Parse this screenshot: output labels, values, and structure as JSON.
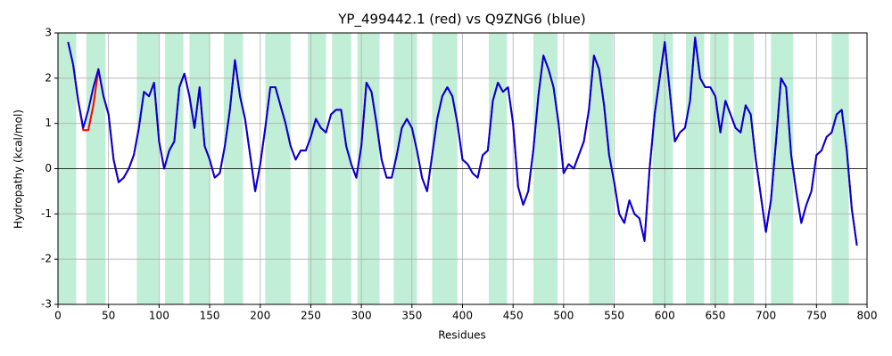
{
  "chart_data": {
    "type": "line",
    "title": "YP_499442.1 (red) vs Q9ZNG6 (blue)",
    "x_label": "Residues",
    "y_label": "Hydropathy (kcal/mol)",
    "xlim": [
      0,
      800
    ],
    "ylim": [
      -3,
      3
    ],
    "xticks": [
      0,
      50,
      100,
      150,
      200,
      250,
      300,
      350,
      400,
      450,
      500,
      550,
      600,
      650,
      700,
      750,
      800
    ],
    "yticks": [
      -3,
      -2,
      -1,
      0,
      1,
      2,
      3
    ],
    "grid": true,
    "hline": 0,
    "region_color": "#c1eed6",
    "regions": [
      [
        0,
        18
      ],
      [
        28,
        47
      ],
      [
        78,
        100
      ],
      [
        106,
        124
      ],
      [
        130,
        150
      ],
      [
        164,
        183
      ],
      [
        205,
        230
      ],
      [
        247,
        265
      ],
      [
        271,
        290
      ],
      [
        296,
        318
      ],
      [
        332,
        355
      ],
      [
        370,
        395
      ],
      [
        426,
        444
      ],
      [
        470,
        494
      ],
      [
        525,
        549
      ],
      [
        588,
        608
      ],
      [
        621,
        639
      ],
      [
        645,
        663
      ],
      [
        668,
        688
      ],
      [
        705,
        727
      ],
      [
        765,
        782
      ]
    ],
    "x": [
      10,
      15,
      20,
      25,
      30,
      35,
      40,
      45,
      50,
      55,
      60,
      65,
      70,
      75,
      80,
      85,
      90,
      95,
      100,
      105,
      110,
      115,
      120,
      125,
      130,
      135,
      140,
      145,
      150,
      155,
      160,
      165,
      170,
      175,
      180,
      185,
      190,
      195,
      200,
      205,
      210,
      215,
      220,
      225,
      230,
      235,
      240,
      245,
      250,
      255,
      260,
      265,
      270,
      275,
      280,
      285,
      290,
      295,
      300,
      305,
      310,
      315,
      320,
      325,
      330,
      335,
      340,
      345,
      350,
      355,
      360,
      365,
      370,
      375,
      380,
      385,
      390,
      395,
      400,
      405,
      410,
      415,
      420,
      425,
      430,
      435,
      440,
      445,
      450,
      455,
      460,
      465,
      470,
      475,
      480,
      485,
      490,
      495,
      500,
      505,
      510,
      515,
      520,
      525,
      530,
      535,
      540,
      545,
      550,
      555,
      560,
      565,
      570,
      575,
      580,
      585,
      590,
      595,
      600,
      605,
      610,
      615,
      620,
      625,
      630,
      635,
      640,
      645,
      650,
      655,
      660,
      665,
      670,
      675,
      680,
      685,
      690,
      695,
      700,
      705,
      710,
      715,
      720,
      725,
      730,
      735,
      740,
      745,
      750,
      755,
      760,
      765,
      770,
      775,
      780,
      785,
      790
    ],
    "series": [
      {
        "name": "YP_499442.1",
        "color": "#ff0000",
        "values": [
          2.8,
          2.3,
          1.5,
          0.85,
          0.85,
          1.4,
          2.2,
          1.6,
          1.2,
          0.2,
          -0.3,
          -0.2,
          0.0,
          0.3,
          0.9,
          1.7,
          1.6,
          1.9,
          0.6,
          0.0,
          0.4,
          0.6,
          1.8,
          2.1,
          1.6,
          0.9,
          1.8,
          0.5,
          0.2,
          -0.2,
          -0.1,
          0.5,
          1.3,
          2.4,
          1.6,
          1.1,
          0.3,
          -0.5,
          0.1,
          0.9,
          1.8,
          1.8,
          1.4,
          1.0,
          0.5,
          0.2,
          0.4,
          0.4,
          0.7,
          1.1,
          0.9,
          0.8,
          1.2,
          1.3,
          1.3,
          0.5,
          0.1,
          -0.2,
          0.5,
          1.9,
          1.7,
          1.0,
          0.2,
          -0.2,
          -0.2,
          0.3,
          0.9,
          1.1,
          0.9,
          0.4,
          -0.2,
          -0.5,
          0.3,
          1.1,
          1.6,
          1.8,
          1.6,
          1.0,
          0.2,
          0.1,
          -0.1,
          -0.2,
          0.3,
          0.4,
          1.5,
          1.9,
          1.7,
          1.8,
          1.0,
          -0.4,
          -0.8,
          -0.5,
          0.4,
          1.6,
          2.5,
          2.2,
          1.8,
          1.0,
          -0.1,
          0.1,
          0.0,
          0.3,
          0.6,
          1.3,
          2.5,
          2.2,
          1.4,
          0.3,
          -0.3,
          -1.0,
          -1.2,
          -0.7,
          -1.0,
          -1.1,
          -1.6,
          0.0,
          1.2,
          2.0,
          2.8,
          1.7,
          0.6,
          0.8,
          0.9,
          1.5,
          2.9,
          2.0,
          1.8,
          1.8,
          1.6,
          0.8,
          1.5,
          1.2,
          0.9,
          0.8,
          1.4,
          1.2,
          0.2,
          -0.6,
          -1.4,
          -0.7,
          0.6,
          2.0,
          1.8,
          0.3,
          -0.5,
          -1.2,
          -0.8,
          -0.5,
          0.3,
          0.4,
          0.7,
          0.8,
          1.2,
          1.3,
          0.4,
          -0.9,
          -1.7
        ]
      },
      {
        "name": "Q9ZNG6",
        "color": "#0000dd",
        "values": [
          2.8,
          2.3,
          1.5,
          0.9,
          1.3,
          1.8,
          2.2,
          1.6,
          1.2,
          0.2,
          -0.3,
          -0.2,
          0.0,
          0.3,
          0.9,
          1.7,
          1.6,
          1.9,
          0.6,
          0.0,
          0.4,
          0.6,
          1.8,
          2.1,
          1.6,
          0.9,
          1.8,
          0.5,
          0.2,
          -0.2,
          -0.1,
          0.5,
          1.3,
          2.4,
          1.6,
          1.1,
          0.3,
          -0.5,
          0.1,
          0.9,
          1.8,
          1.8,
          1.4,
          1.0,
          0.5,
          0.2,
          0.4,
          0.4,
          0.7,
          1.1,
          0.9,
          0.8,
          1.2,
          1.3,
          1.3,
          0.5,
          0.1,
          -0.2,
          0.5,
          1.9,
          1.7,
          1.0,
          0.2,
          -0.2,
          -0.2,
          0.3,
          0.9,
          1.1,
          0.9,
          0.4,
          -0.2,
          -0.5,
          0.3,
          1.1,
          1.6,
          1.8,
          1.6,
          1.0,
          0.2,
          0.1,
          -0.1,
          -0.2,
          0.3,
          0.4,
          1.5,
          1.9,
          1.7,
          1.8,
          1.0,
          -0.4,
          -0.8,
          -0.5,
          0.4,
          1.6,
          2.5,
          2.2,
          1.8,
          1.0,
          -0.1,
          0.1,
          0.0,
          0.3,
          0.6,
          1.3,
          2.5,
          2.2,
          1.4,
          0.3,
          -0.3,
          -1.0,
          -1.2,
          -0.7,
          -1.0,
          -1.1,
          -1.6,
          0.0,
          1.2,
          2.0,
          2.8,
          1.7,
          0.6,
          0.8,
          0.9,
          1.5,
          2.9,
          2.0,
          1.8,
          1.8,
          1.6,
          0.8,
          1.5,
          1.2,
          0.9,
          0.8,
          1.4,
          1.2,
          0.2,
          -0.6,
          -1.4,
          -0.7,
          0.6,
          2.0,
          1.8,
          0.3,
          -0.5,
          -1.2,
          -0.8,
          -0.5,
          0.3,
          0.4,
          0.7,
          0.8,
          1.2,
          1.3,
          0.4,
          -0.9,
          -1.7
        ]
      }
    ]
  }
}
